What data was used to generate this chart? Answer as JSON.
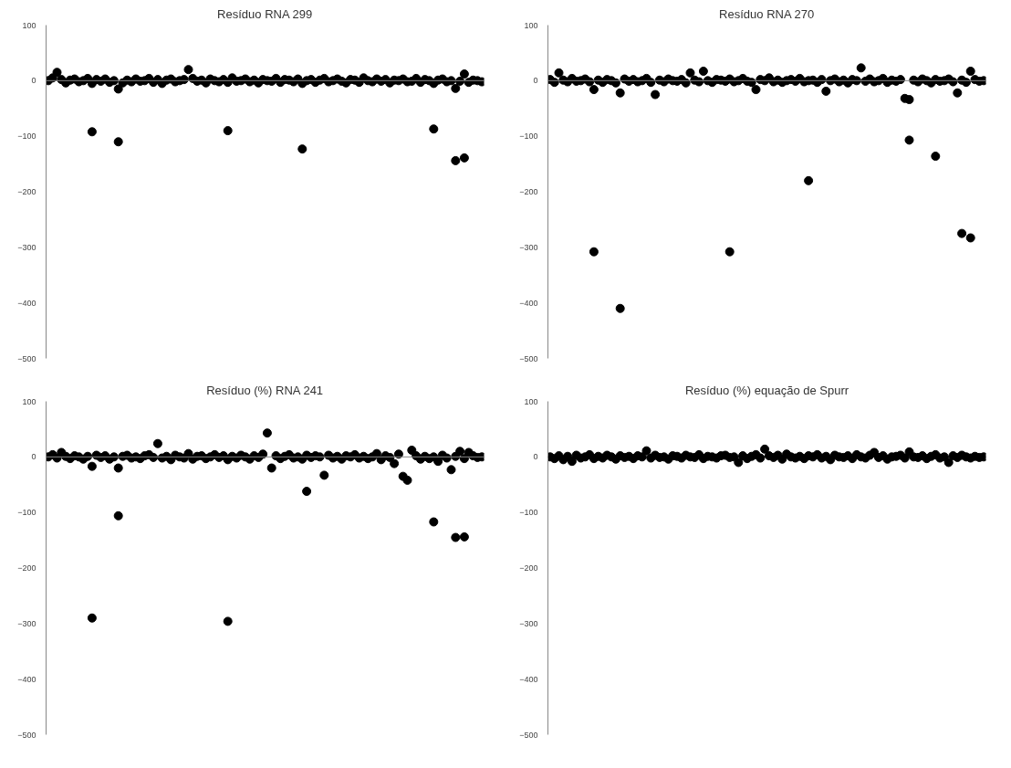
{
  "chart_data": [
    {
      "type": "scatter",
      "title": "Resíduo RNA 299",
      "categories": [
        null,
        null,
        null,
        null,
        null,
        null,
        null,
        null,
        null,
        null,
        null,
        null,
        null,
        null,
        null,
        null,
        null,
        null,
        null,
        null,
        null,
        null,
        null,
        null,
        null,
        null,
        null,
        null,
        null,
        null,
        null,
        null,
        null,
        null,
        null,
        null,
        null,
        null,
        null,
        null,
        null,
        null,
        null,
        null,
        null,
        null,
        null,
        null,
        null,
        null,
        null,
        null,
        null,
        null,
        null,
        null,
        null,
        null,
        null,
        null,
        null,
        null,
        null,
        null,
        null,
        null,
        null,
        null,
        null,
        null,
        null,
        null,
        null,
        null,
        null,
        null,
        null,
        null,
        null,
        null,
        null,
        null,
        null,
        null,
        null,
        null,
        null,
        null,
        null,
        null,
        null,
        null,
        null,
        null,
        null,
        null,
        null,
        null,
        null,
        null
      ],
      "series": [
        {
          "color": "#000000",
          "values": [
            0,
            5,
            15,
            2,
            -4,
            1,
            3,
            -2,
            0,
            4,
            -5,
            2,
            -1,
            3,
            -3,
            0,
            -15,
            -4,
            1,
            -2,
            3,
            -1,
            0,
            4,
            -3,
            2,
            -5,
            1,
            3,
            -2,
            0,
            2,
            20,
            4,
            -1,
            1,
            -4,
            3,
            0,
            -2,
            2,
            -3,
            5,
            -1,
            0,
            3,
            -2,
            1,
            -4,
            2,
            0,
            -1,
            4,
            -3,
            2,
            1,
            -2,
            3,
            -5,
            0,
            2,
            -3,
            1,
            4,
            -2,
            0,
            3,
            -1,
            -4,
            2,
            1,
            -3,
            5,
            0,
            -2,
            3,
            -1,
            2,
            -4,
            1,
            0,
            3,
            -2,
            -1,
            4,
            -3,
            2,
            0,
            -5,
            1,
            3,
            -2,
            0,
            -14,
            -1,
            12,
            -3,
            1,
            0,
            -2
          ]
        },
        {
          "color": "#000000",
          "values": [
            null,
            null,
            null,
            null,
            null,
            null,
            null,
            null,
            null,
            null,
            -92,
            null,
            null,
            null,
            null,
            null,
            -110,
            null,
            null,
            null,
            null,
            null,
            null,
            null,
            null,
            null,
            null,
            null,
            null,
            null,
            null,
            null,
            null,
            null,
            null,
            null,
            null,
            null,
            null,
            null,
            null,
            -90,
            null,
            null,
            null,
            null,
            null,
            null,
            null,
            null,
            null,
            null,
            null,
            null,
            null,
            null,
            null,
            null,
            -123,
            null,
            null,
            null,
            null,
            null,
            null,
            null,
            null,
            null,
            null,
            null,
            null,
            null,
            null,
            null,
            null,
            null,
            null,
            null,
            null,
            null,
            null,
            null,
            null,
            null,
            null,
            null,
            null,
            null,
            -87,
            null,
            null,
            null,
            null,
            -144,
            null,
            -139,
            null,
            null,
            null,
            null
          ]
        }
      ],
      "ylim": [
        -500,
        100
      ],
      "yticks": [
        -500,
        -400,
        -300,
        -200,
        -100,
        0,
        100
      ],
      "grid": false,
      "marker": "circle",
      "tick_labels": "y",
      "ref_lines": [
        {
          "axis": "y",
          "value": 0,
          "color": "#888888"
        }
      ]
    },
    {
      "type": "scatter",
      "title": "Resíduo RNA 270",
      "categories": [
        null,
        null,
        null,
        null,
        null,
        null,
        null,
        null,
        null,
        null,
        null,
        null,
        null,
        null,
        null,
        null,
        null,
        null,
        null,
        null,
        null,
        null,
        null,
        null,
        null,
        null,
        null,
        null,
        null,
        null,
        null,
        null,
        null,
        null,
        null,
        null,
        null,
        null,
        null,
        null,
        null,
        null,
        null,
        null,
        null,
        null,
        null,
        null,
        null,
        null,
        null,
        null,
        null,
        null,
        null,
        null,
        null,
        null,
        null,
        null,
        null,
        null,
        null,
        null,
        null,
        null,
        null,
        null,
        null,
        null,
        null,
        null,
        null,
        null,
        null,
        null,
        null,
        null,
        null,
        null,
        null,
        null,
        null,
        null,
        null,
        null,
        null,
        null,
        null,
        null,
        null,
        null,
        null,
        null,
        null,
        null,
        null,
        null,
        null,
        null
      ],
      "series": [
        {
          "color": "#000000",
          "values": [
            2,
            -3,
            14,
            1,
            -2,
            4,
            -1,
            0,
            3,
            -2,
            -16,
            1,
            -3,
            2,
            0,
            -4,
            -22,
            3,
            -1,
            2,
            -2,
            0,
            4,
            -3,
            -25,
            1,
            -2,
            3,
            0,
            -1,
            2,
            -4,
            14,
            1,
            -2,
            17,
            0,
            -3,
            2,
            1,
            -1,
            3,
            -2,
            0,
            4,
            -1,
            -3,
            -16,
            2,
            0,
            5,
            -2,
            1,
            -3,
            0,
            2,
            -1,
            4,
            -2,
            0,
            1,
            -3,
            2,
            -19,
            0,
            3,
            -2,
            1,
            -4,
            2,
            0,
            23,
            -1,
            3,
            -2,
            0,
            4,
            -3,
            1,
            -1,
            2,
            -32,
            -34,
            1,
            -2,
            3,
            0,
            -4,
            2,
            -1,
            0,
            3,
            -2,
            -22,
            1,
            -3,
            17,
            2,
            -1,
            0
          ]
        },
        {
          "color": "#000000",
          "values": [
            null,
            null,
            null,
            null,
            null,
            null,
            null,
            null,
            null,
            null,
            -308,
            null,
            null,
            null,
            null,
            null,
            -410,
            null,
            null,
            null,
            null,
            null,
            null,
            null,
            null,
            null,
            null,
            null,
            null,
            null,
            null,
            null,
            null,
            null,
            null,
            null,
            null,
            null,
            null,
            null,
            null,
            -308,
            null,
            null,
            null,
            null,
            null,
            null,
            null,
            null,
            null,
            null,
            null,
            null,
            null,
            null,
            null,
            null,
            null,
            -180,
            null,
            null,
            null,
            null,
            null,
            null,
            null,
            null,
            null,
            null,
            null,
            null,
            null,
            null,
            null,
            null,
            null,
            null,
            null,
            null,
            null,
            null,
            -107,
            null,
            null,
            null,
            null,
            null,
            -136,
            null,
            null,
            null,
            null,
            null,
            -275,
            null,
            -283,
            null,
            null,
            null
          ]
        }
      ],
      "ylim": [
        -500,
        100
      ],
      "yticks": [
        -500,
        -400,
        -300,
        -200,
        -100,
        0,
        100
      ],
      "grid": false,
      "marker": "circle",
      "tick_labels": "y",
      "ref_lines": [
        {
          "axis": "y",
          "value": 0,
          "color": "#888888"
        }
      ]
    },
    {
      "type": "scatter",
      "title": "Resíduo (%) RNA 241",
      "categories": [
        null,
        null,
        null,
        null,
        null,
        null,
        null,
        null,
        null,
        null,
        null,
        null,
        null,
        null,
        null,
        null,
        null,
        null,
        null,
        null,
        null,
        null,
        null,
        null,
        null,
        null,
        null,
        null,
        null,
        null,
        null,
        null,
        null,
        null,
        null,
        null,
        null,
        null,
        null,
        null,
        null,
        null,
        null,
        null,
        null,
        null,
        null,
        null,
        null,
        null,
        null,
        null,
        null,
        null,
        null,
        null,
        null,
        null,
        null,
        null,
        null,
        null,
        null,
        null,
        null,
        null,
        null,
        null,
        null,
        null,
        null,
        null,
        null,
        null,
        null,
        null,
        null,
        null,
        null,
        null,
        null,
        null,
        null,
        null,
        null,
        null,
        null,
        null,
        null,
        null,
        null,
        null,
        null,
        null,
        null,
        null,
        null,
        null,
        null,
        null
      ],
      "series": [
        {
          "color": "#000000",
          "values": [
            0,
            4,
            -2,
            8,
            1,
            -3,
            2,
            0,
            -4,
            1,
            -17,
            3,
            -1,
            2,
            -4,
            0,
            -20,
            1,
            3,
            -2,
            0,
            -3,
            2,
            4,
            -1,
            24,
            -2,
            1,
            -5,
            3,
            0,
            -2,
            6,
            -4,
            1,
            2,
            -3,
            0,
            4,
            -1,
            2,
            -5,
            1,
            -2,
            3,
            0,
            -4,
            2,
            -1,
            5,
            43,
            -20,
            2,
            -3,
            1,
            4,
            -2,
            0,
            -4,
            3,
            -1,
            2,
            0,
            -33,
            3,
            -2,
            1,
            -4,
            2,
            0,
            4,
            -2,
            1,
            -3,
            0,
            6,
            -5,
            2,
            -1,
            -12,
            5,
            -35,
            -42,
            12,
            2,
            -4,
            1,
            -3,
            0,
            -8,
            3,
            -2,
            -23,
            1,
            10,
            -3,
            8,
            2,
            -1,
            0
          ]
        },
        {
          "color": "#000000",
          "values": [
            null,
            null,
            null,
            null,
            null,
            null,
            null,
            null,
            null,
            null,
            -290,
            null,
            null,
            null,
            null,
            null,
            -106,
            null,
            null,
            null,
            null,
            null,
            null,
            null,
            null,
            null,
            null,
            null,
            null,
            null,
            null,
            null,
            null,
            null,
            null,
            null,
            null,
            null,
            null,
            null,
            null,
            -296,
            null,
            null,
            null,
            null,
            null,
            null,
            null,
            null,
            null,
            null,
            null,
            null,
            null,
            null,
            null,
            null,
            null,
            -62,
            null,
            null,
            null,
            null,
            null,
            null,
            null,
            null,
            null,
            null,
            null,
            null,
            null,
            null,
            null,
            null,
            null,
            null,
            null,
            null,
            null,
            null,
            null,
            null,
            null,
            null,
            null,
            null,
            -117,
            null,
            null,
            null,
            null,
            -145,
            null,
            -144,
            null,
            null,
            null,
            null
          ]
        }
      ],
      "ylim": [
        -500,
        100
      ],
      "yticks": [
        -500,
        -400,
        -300,
        -200,
        -100,
        0,
        100
      ],
      "grid": false,
      "marker": "circle",
      "tick_labels": "y",
      "ref_lines": [
        {
          "axis": "y",
          "value": 0,
          "color": "#888888"
        }
      ]
    },
    {
      "type": "scatter",
      "title": "Resíduo (%) equação de Spurr",
      "categories": [
        null,
        null,
        null,
        null,
        null,
        null,
        null,
        null,
        null,
        null,
        null,
        null,
        null,
        null,
        null,
        null,
        null,
        null,
        null,
        null,
        null,
        null,
        null,
        null,
        null,
        null,
        null,
        null,
        null,
        null,
        null,
        null,
        null,
        null,
        null,
        null,
        null,
        null,
        null,
        null,
        null,
        null,
        null,
        null,
        null,
        null,
        null,
        null,
        null,
        null,
        null,
        null,
        null,
        null,
        null,
        null,
        null,
        null,
        null,
        null,
        null,
        null,
        null,
        null,
        null,
        null,
        null,
        null,
        null,
        null,
        null,
        null,
        null,
        null,
        null,
        null,
        null,
        null,
        null,
        null,
        null,
        null,
        null,
        null,
        null,
        null,
        null,
        null,
        null,
        null,
        null,
        null,
        null,
        null,
        null,
        null,
        null,
        null,
        null,
        null
      ],
      "series": [
        {
          "color": "#000000",
          "values": [
            0,
            -3,
            2,
            -5,
            1,
            -8,
            3,
            -2,
            0,
            4,
            -3,
            1,
            -2,
            3,
            0,
            -4,
            2,
            -1,
            1,
            -3,
            2,
            0,
            11,
            -2,
            3,
            -1,
            0,
            -4,
            2,
            1,
            -2,
            3,
            0,
            -1,
            4,
            -3,
            1,
            0,
            -2,
            2,
            3,
            -1,
            0,
            -10,
            2,
            -3,
            1,
            4,
            -2,
            14,
            2,
            -1,
            3,
            -4,
            5,
            0,
            -2,
            1,
            -3,
            2,
            0,
            4,
            -2,
            1,
            -5,
            3,
            0,
            -1,
            2,
            -3,
            4,
            0,
            -2,
            3,
            8,
            -1,
            2,
            -4,
            0,
            1,
            3,
            -2,
            9,
            0,
            -1,
            2,
            -3,
            1,
            4,
            -2,
            0,
            -10,
            2,
            -1,
            3,
            0,
            -2,
            1,
            -1,
            0
          ]
        }
      ],
      "ylim": [
        -500,
        100
      ],
      "yticks": [
        -500,
        -400,
        -300,
        -200,
        -100,
        0,
        100
      ],
      "grid": false,
      "marker": "circle",
      "tick_labels": "y",
      "ref_lines": [
        {
          "axis": "y",
          "value": 0,
          "color": "#000000"
        }
      ]
    }
  ]
}
